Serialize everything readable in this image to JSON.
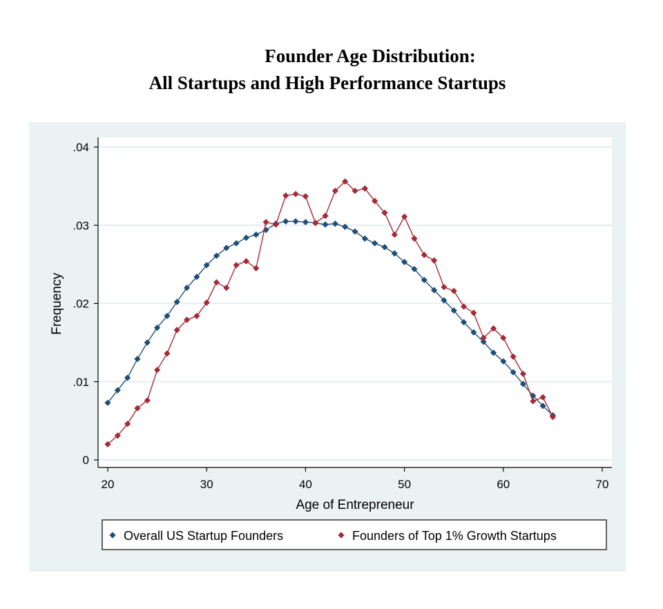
{
  "chart_data": {
    "type": "line",
    "title": "Founder Age Distribution:",
    "subtitle": "All Startups and High Performance Startups",
    "xlabel": "Age of Entrepreneur",
    "ylabel": "Frequency",
    "xlim": [
      20,
      70
    ],
    "ylim": [
      0,
      0.04
    ],
    "xticks": [
      20,
      30,
      40,
      50,
      60,
      70
    ],
    "xtick_labels": [
      "20",
      "30",
      "40",
      "50",
      "60",
      "70"
    ],
    "yticks": [
      0,
      0.01,
      0.02,
      0.03,
      0.04
    ],
    "ytick_labels": [
      "0",
      ".01",
      ".02",
      ".03",
      ".04"
    ],
    "grid": true,
    "legend_position": "bottom",
    "x": [
      20,
      21,
      22,
      23,
      24,
      25,
      26,
      27,
      28,
      29,
      30,
      31,
      32,
      33,
      34,
      35,
      36,
      37,
      38,
      39,
      40,
      41,
      42,
      43,
      44,
      45,
      46,
      47,
      48,
      49,
      50,
      51,
      52,
      53,
      54,
      55,
      56,
      57,
      58,
      59,
      60,
      61,
      62,
      63,
      64,
      65
    ],
    "series": [
      {
        "name": "Overall US Startup Founders",
        "color": "#1f4e79",
        "marker": "diamond",
        "values": [
          0.0073,
          0.0089,
          0.0105,
          0.0129,
          0.015,
          0.0169,
          0.0184,
          0.0202,
          0.022,
          0.0234,
          0.0249,
          0.0261,
          0.0271,
          0.0277,
          0.0284,
          0.0288,
          0.0294,
          0.0302,
          0.0305,
          0.0305,
          0.0304,
          0.0303,
          0.0301,
          0.0302,
          0.0298,
          0.0292,
          0.0283,
          0.0277,
          0.0272,
          0.0264,
          0.0253,
          0.0244,
          0.023,
          0.0217,
          0.0204,
          0.0191,
          0.0176,
          0.0163,
          0.0151,
          0.0137,
          0.0126,
          0.0112,
          0.0097,
          0.0082,
          0.0069,
          0.0057
        ]
      },
      {
        "name": "Founders of Top 1% Growth Startups",
        "color": "#a42b35",
        "marker": "diamond",
        "values": [
          0.002,
          0.0031,
          0.0046,
          0.0066,
          0.0076,
          0.0115,
          0.0136,
          0.0166,
          0.0179,
          0.0184,
          0.0201,
          0.0227,
          0.022,
          0.0249,
          0.0254,
          0.0245,
          0.0304,
          0.0301,
          0.0338,
          0.034,
          0.0337,
          0.0303,
          0.0312,
          0.0344,
          0.0356,
          0.0344,
          0.0347,
          0.0331,
          0.0316,
          0.0288,
          0.0311,
          0.0283,
          0.0262,
          0.0255,
          0.0221,
          0.0216,
          0.0196,
          0.0188,
          0.0156,
          0.0168,
          0.0156,
          0.0132,
          0.011,
          0.0075,
          0.008,
          0.0055
        ]
      }
    ]
  },
  "colors": {
    "frame_background": "#eaf2f3",
    "plot_background": "#ffffff",
    "gridline": "#e6eef0",
    "axis": "#000000"
  }
}
